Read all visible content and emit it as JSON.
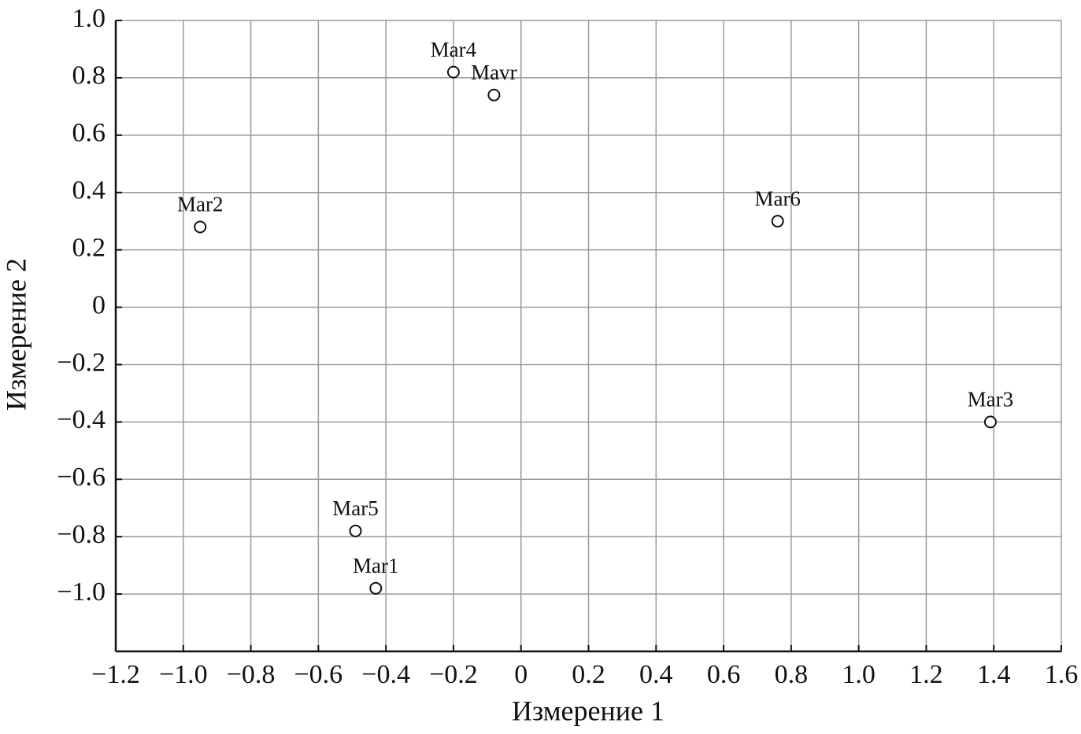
{
  "chart_data": {
    "type": "scatter",
    "x_label": "Измерение 1",
    "y_label": "Измерение 2",
    "labels": [
      "Mar4",
      "Mavr",
      "Mar2",
      "Mar6",
      "Mar3",
      "Mar5",
      "Mar1"
    ],
    "x": [
      -0.2,
      -0.08,
      -0.95,
      0.76,
      1.39,
      -0.49,
      -0.43
    ],
    "y": [
      0.82,
      0.74,
      0.28,
      0.3,
      -0.4,
      -0.78,
      -0.98
    ],
    "color": "#111111",
    "xlim": [
      -1.2,
      1.6
    ],
    "ylim": [
      -1.2,
      1.0
    ],
    "xticks": [
      {
        "value": -1.2,
        "label": "−1.2"
      },
      {
        "value": -1.0,
        "label": "−1.0"
      },
      {
        "value": -0.8,
        "label": "−0.8"
      },
      {
        "value": -0.6,
        "label": "−0.6"
      },
      {
        "value": -0.4,
        "label": "−0.4"
      },
      {
        "value": -0.2,
        "label": "−0.2"
      },
      0,
      0.2,
      0.4,
      0.6,
      0.8,
      {
        "value": 1.0,
        "label": "1.0"
      },
      1.2,
      1.4,
      1.6
    ],
    "yticks": [
      {
        "value": 1.0,
        "label": "1.0"
      },
      0.8,
      0.6,
      0.4,
      0.2,
      0,
      {
        "value": -0.2,
        "label": "−0.2"
      },
      {
        "value": -0.4,
        "label": "−0.4"
      },
      {
        "value": -0.6,
        "label": "−0.6"
      },
      {
        "value": -0.8,
        "label": "−0.8"
      },
      {
        "value": -1.0,
        "label": "−1.0"
      }
    ],
    "grid": true
  }
}
